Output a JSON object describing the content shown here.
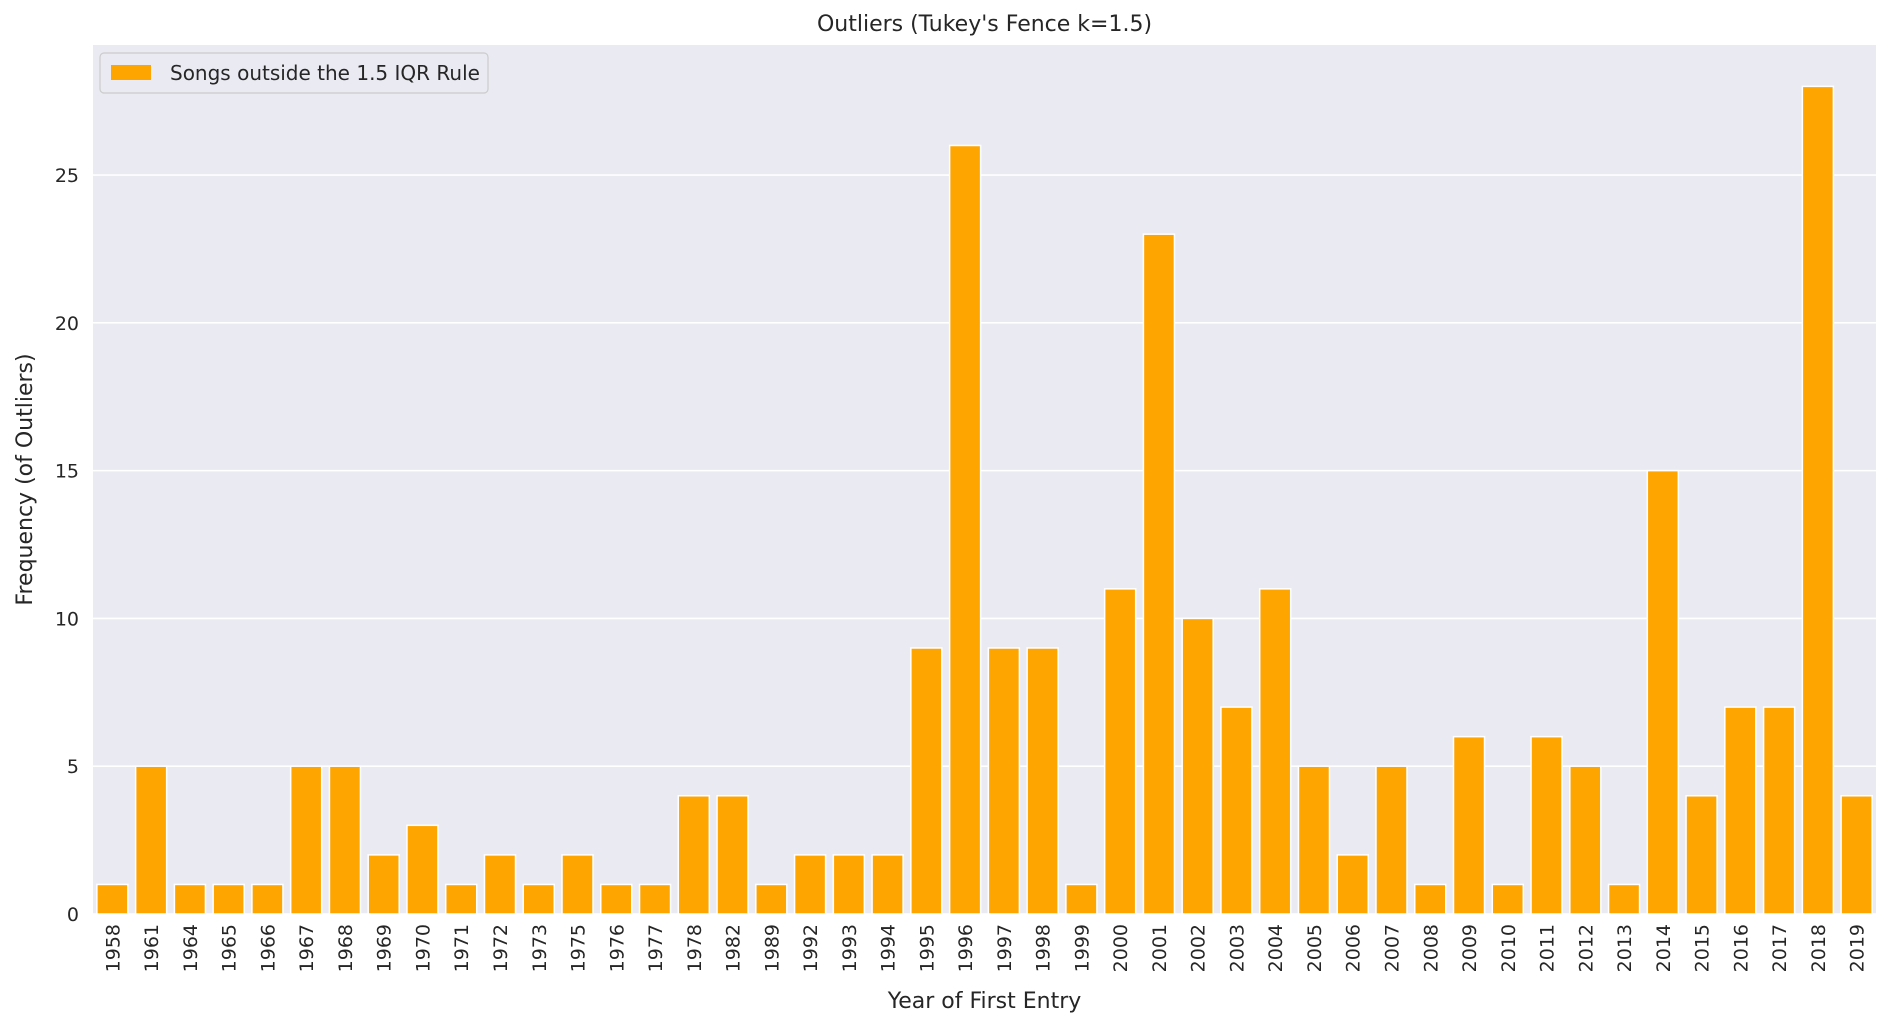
{
  "chart_data": {
    "type": "bar",
    "title": "Outliers (Tukey's Fence k=1.5)",
    "xlabel": "Year of First Entry",
    "ylabel": "Frequency (of Outliers)",
    "ylim": [
      0,
      29.4
    ],
    "yticks": [
      0,
      5,
      10,
      15,
      20,
      25
    ],
    "grid": true,
    "legend_position": "top-left",
    "series": [
      {
        "name": "Songs outside the 1.5 IQR Rule",
        "color": "#ffa500",
        "values": [
          1,
          5,
          1,
          1,
          1,
          5,
          5,
          2,
          3,
          1,
          2,
          1,
          2,
          1,
          1,
          4,
          4,
          1,
          2,
          2,
          2,
          9,
          26,
          9,
          9,
          1,
          11,
          23,
          10,
          7,
          11,
          5,
          2,
          5,
          1,
          6,
          1,
          6,
          5,
          1,
          15,
          4,
          7,
          7,
          28,
          4
        ]
      }
    ],
    "categories": [
      "1958",
      "1961",
      "1964",
      "1965",
      "1966",
      "1967",
      "1968",
      "1969",
      "1970",
      "1971",
      "1972",
      "1973",
      "1975",
      "1976",
      "1977",
      "1978",
      "1982",
      "1989",
      "1992",
      "1993",
      "1994",
      "1995",
      "1996",
      "1997",
      "1998",
      "1999",
      "2000",
      "2001",
      "2002",
      "2003",
      "2004",
      "2005",
      "2006",
      "2007",
      "2008",
      "2009",
      "2010",
      "2011",
      "2012",
      "2013",
      "2014",
      "2015",
      "2016",
      "2017",
      "2018",
      "2019"
    ],
    "colors": {
      "plot_background": "#eaeaf2",
      "grid": "#ffffff",
      "bar_edge": "#ffffff"
    }
  }
}
